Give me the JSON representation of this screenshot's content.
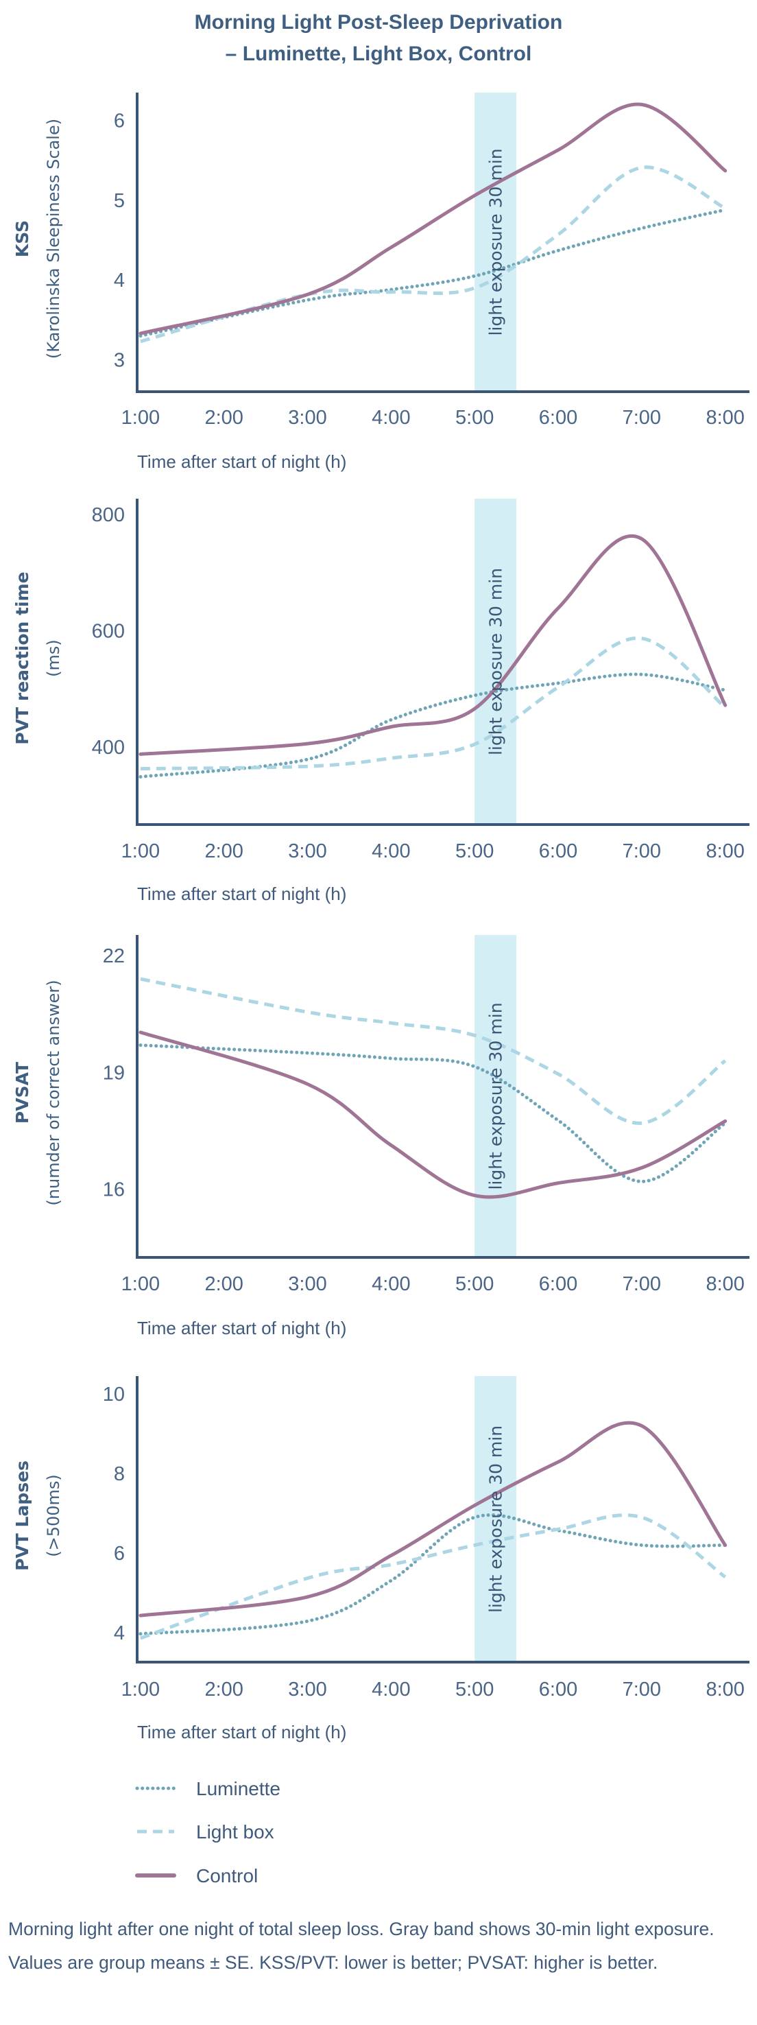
{
  "title_lines": [
    "Morning Light Post-Sleep Deprivation",
    "– Luminette, Light Box, Control"
  ],
  "colors": {
    "control": "#a07494",
    "light_box": "#acd6e3",
    "luminette": "#6da4b6",
    "band": "#d3eef5",
    "axis": "#3b5577"
  },
  "legend": [
    {
      "key": "luminette",
      "label": "Luminette",
      "style": "dotted"
    },
    {
      "key": "light_box",
      "label": "Light box",
      "style": "dashed"
    },
    {
      "key": "control",
      "label": "Control",
      "style": "solid"
    }
  ],
  "caption": "Morning light after one night of total sleep loss. Gray band shows 30-min light exposure. Values are group means ± SE. KSS/PVT: lower is better; PVSAT: higher is better.",
  "chart_data": [
    {
      "type": "line",
      "ylabel": [
        "KSS",
        "(Karolinska Sleepiness Scale)"
      ],
      "xlabel": "Time after start of night (h)",
      "x_ticks": [
        1,
        2,
        3,
        4,
        5,
        6,
        7,
        8
      ],
      "x_tick_labels": [
        "1:00",
        "2:00",
        "3:00",
        "4:00",
        "5:00",
        "6:00",
        "7:00",
        "8:00"
      ],
      "xlim": [
        0.96,
        8.29
      ],
      "ylim": [
        2.6,
        6.35
      ],
      "y_ticks": [
        3,
        4,
        5,
        6
      ],
      "y_tick_labels": [
        "3",
        "4",
        "5",
        "6"
      ],
      "band": {
        "from": 5.0,
        "to": 5.5,
        "label": "light exposure 30 min"
      },
      "x": [
        1,
        3,
        4,
        5,
        6,
        7,
        8
      ],
      "series": [
        {
          "key": "luminette",
          "name": "Luminette",
          "values": [
            3.3,
            3.75,
            3.88,
            4.05,
            4.37,
            4.65,
            4.88
          ]
        },
        {
          "key": "light_box",
          "name": "Light box",
          "values": [
            3.23,
            3.82,
            3.85,
            3.9,
            4.57,
            5.41,
            4.9
          ]
        },
        {
          "key": "control",
          "name": "Control",
          "values": [
            3.33,
            3.82,
            4.41,
            5.06,
            5.63,
            6.2,
            5.37
          ]
        }
      ]
    },
    {
      "type": "line",
      "ylabel": [
        "PVT reaction time",
        "(ms)"
      ],
      "xlabel": "Time after start of night (h)",
      "x_ticks": [
        1,
        2,
        3,
        4,
        5,
        6,
        7,
        8
      ],
      "x_tick_labels": [
        "1:00",
        "2:00",
        "3:00",
        "4:00",
        "5:00",
        "6:00",
        "7:00",
        "8:00"
      ],
      "xlim": [
        0.96,
        8.29
      ],
      "ylim": [
        267,
        827
      ],
      "y_ticks": [
        400,
        600,
        800
      ],
      "y_tick_labels": [
        "400",
        "600",
        "800"
      ],
      "band": {
        "from": 5.0,
        "to": 5.5,
        "label": "light exposure 30 min"
      },
      "x": [
        1,
        3,
        4,
        5,
        6,
        7,
        8
      ],
      "series": [
        {
          "key": "luminette",
          "name": "Luminette",
          "values": [
            349,
            379,
            447,
            489,
            510,
            525,
            498
          ]
        },
        {
          "key": "light_box",
          "name": "Light box",
          "values": [
            363,
            367,
            381,
            405,
            503,
            587,
            468
          ]
        },
        {
          "key": "control",
          "name": "Control",
          "values": [
            388,
            406,
            435,
            466,
            639,
            758,
            472
          ]
        }
      ]
    },
    {
      "type": "line",
      "ylabel": [
        "PVSAT",
        "(numder of correct answer)"
      ],
      "xlabel": "Time after start of night (h)",
      "x_ticks": [
        1,
        2,
        3,
        4,
        5,
        6,
        7,
        8
      ],
      "x_tick_labels": [
        "1:00",
        "2:00",
        "3:00",
        "4:00",
        "5:00",
        "6:00",
        "7:00",
        "8:00"
      ],
      "xlim": [
        0.96,
        8.29
      ],
      "ylim": [
        14.25,
        22.53
      ],
      "y_ticks": [
        16,
        19,
        22
      ],
      "y_tick_labels": [
        "16",
        "19",
        "22"
      ],
      "band": {
        "from": 5.0,
        "to": 5.5,
        "label": "light exposure 30 min"
      },
      "x": [
        1,
        3,
        4,
        5,
        6,
        7,
        8
      ],
      "series": [
        {
          "key": "luminette",
          "name": "Luminette",
          "values": [
            19.7,
            19.5,
            19.36,
            19.15,
            17.77,
            16.2,
            17.7
          ]
        },
        {
          "key": "light_box",
          "name": "Light box",
          "values": [
            21.4,
            20.55,
            20.27,
            19.95,
            18.96,
            17.7,
            19.3
          ]
        },
        {
          "key": "control",
          "name": "Control",
          "values": [
            20.03,
            18.7,
            17.13,
            15.84,
            16.16,
            16.55,
            17.75
          ]
        }
      ]
    },
    {
      "type": "line",
      "ylabel": [
        "PVT Lapses",
        "(>500ms)"
      ],
      "xlabel": "Time after start of night (h)",
      "x_ticks": [
        1,
        2,
        3,
        4,
        5,
        6,
        7,
        8
      ],
      "x_tick_labels": [
        "1:00",
        "2:00",
        "3:00",
        "4:00",
        "5:00",
        "6:00",
        "7:00",
        "8:00"
      ],
      "xlim": [
        0.96,
        8.29
      ],
      "ylim": [
        3.26,
        10.45
      ],
      "y_ticks": [
        4,
        6,
        8,
        10
      ],
      "y_tick_labels": [
        "4",
        "6",
        "8",
        "10"
      ],
      "band": {
        "from": 5.0,
        "to": 5.5,
        "label": "light exposure 30 min"
      },
      "x": [
        1,
        3,
        4,
        5,
        6,
        7,
        8
      ],
      "series": [
        {
          "key": "luminette",
          "name": "Luminette",
          "values": [
            3.97,
            4.29,
            5.31,
            6.9,
            6.57,
            6.2,
            6.2
          ]
        },
        {
          "key": "light_box",
          "name": "Light box",
          "values": [
            3.86,
            5.37,
            5.71,
            6.2,
            6.6,
            6.9,
            5.4
          ]
        },
        {
          "key": "control",
          "name": "Control",
          "values": [
            4.43,
            4.9,
            5.94,
            7.2,
            8.29,
            9.2,
            6.2
          ]
        }
      ]
    }
  ]
}
